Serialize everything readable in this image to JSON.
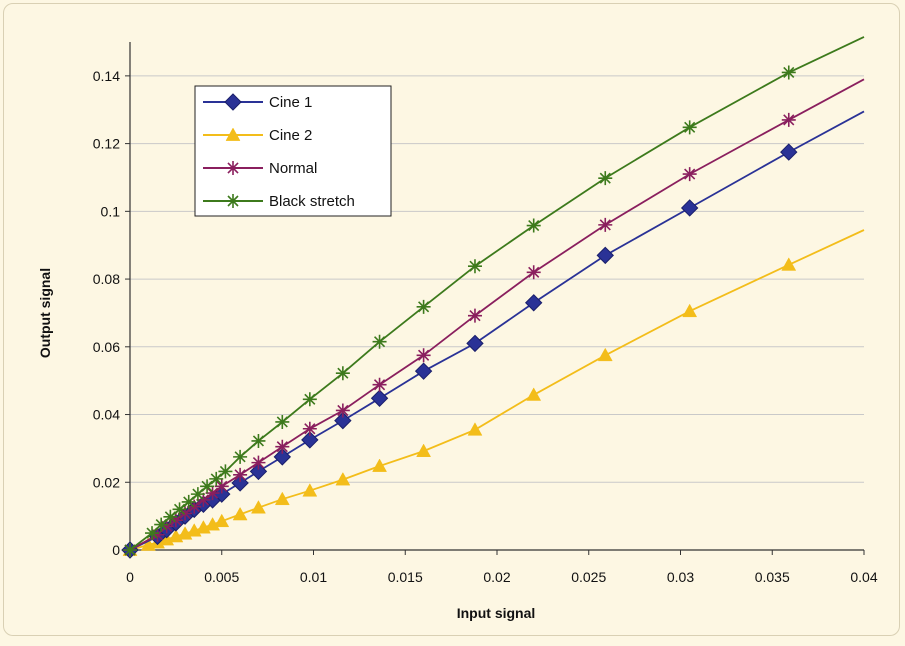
{
  "chart_data": {
    "type": "line",
    "title": "",
    "xlabel": "Input signal",
    "ylabel": "Output signal",
    "xlim": [
      0,
      0.04
    ],
    "ylim": [
      0,
      0.15
    ],
    "x_ticks": [
      0,
      0.005,
      0.01,
      0.015,
      0.02,
      0.025,
      0.03,
      0.035,
      0.04
    ],
    "x_tick_labels": [
      "0",
      "0.005",
      "0.01",
      "0.015",
      "0.02",
      "0.025",
      "0.03",
      "0.035",
      "0.04"
    ],
    "y_ticks": [
      0,
      0.02,
      0.04,
      0.06,
      0.08,
      0.1,
      0.12,
      0.14
    ],
    "y_tick_labels": [
      "0",
      "0.02",
      "0.04",
      "0.06",
      "0.08",
      "0.1",
      "0.12",
      "0.14"
    ],
    "grid": "horizontal",
    "legend_position": "top-left",
    "series": [
      {
        "name": "Cine 1",
        "color": "#2a3296",
        "marker": "diamond",
        "x": [
          0,
          0.0015,
          0.002,
          0.0025,
          0.003,
          0.0035,
          0.004,
          0.0045,
          0.005,
          0.006,
          0.007,
          0.0083,
          0.0098,
          0.0116,
          0.0136,
          0.016,
          0.0188,
          0.022,
          0.0259,
          0.0305,
          0.0359,
          0.04
        ],
        "y": [
          0,
          0.004,
          0.006,
          0.008,
          0.01,
          0.012,
          0.0135,
          0.0148,
          0.0165,
          0.0198,
          0.0232,
          0.0275,
          0.0325,
          0.0382,
          0.0448,
          0.0528,
          0.061,
          0.073,
          0.087,
          0.101,
          0.1175,
          0.1295
        ]
      },
      {
        "name": "Cine 2",
        "color": "#f3bd1a",
        "marker": "triangle",
        "x": [
          0,
          0.001,
          0.0015,
          0.002,
          0.0025,
          0.003,
          0.0035,
          0.004,
          0.0045,
          0.005,
          0.006,
          0.007,
          0.0083,
          0.0098,
          0.0116,
          0.0136,
          0.016,
          0.0188,
          0.022,
          0.0259,
          0.0305,
          0.0359,
          0.04
        ],
        "y": [
          0,
          0.0015,
          0.0022,
          0.0031,
          0.004,
          0.0048,
          0.0057,
          0.0066,
          0.0075,
          0.0085,
          0.0105,
          0.0125,
          0.015,
          0.0175,
          0.0208,
          0.0248,
          0.0292,
          0.0355,
          0.0458,
          0.0575,
          0.0705,
          0.0842,
          0.0945
        ]
      },
      {
        "name": "Normal",
        "color": "#8a1f5e",
        "marker": "asterisk",
        "x": [
          0,
          0.0015,
          0.002,
          0.0025,
          0.003,
          0.0035,
          0.004,
          0.0045,
          0.005,
          0.006,
          0.007,
          0.0083,
          0.0098,
          0.0116,
          0.0136,
          0.016,
          0.0188,
          0.022,
          0.0259,
          0.0305,
          0.0359,
          0.04
        ],
        "y": [
          0,
          0.0045,
          0.007,
          0.0088,
          0.0108,
          0.0128,
          0.0148,
          0.0168,
          0.0188,
          0.0222,
          0.0258,
          0.0305,
          0.0358,
          0.0412,
          0.0488,
          0.0575,
          0.0692,
          0.082,
          0.096,
          0.111,
          0.127,
          0.139
        ]
      },
      {
        "name": "Black stretch",
        "color": "#3d7a1c",
        "marker": "cross-plus",
        "x": [
          0,
          0.0012,
          0.0017,
          0.0022,
          0.0027,
          0.0032,
          0.0037,
          0.0042,
          0.0047,
          0.0052,
          0.006,
          0.007,
          0.0083,
          0.0098,
          0.0116,
          0.0136,
          0.016,
          0.0188,
          0.022,
          0.0259,
          0.0305,
          0.0359,
          0.04
        ],
        "y": [
          0,
          0.005,
          0.0075,
          0.0098,
          0.012,
          0.0142,
          0.0165,
          0.0188,
          0.021,
          0.0232,
          0.0275,
          0.0322,
          0.0378,
          0.0445,
          0.0522,
          0.0615,
          0.0718,
          0.0838,
          0.0958,
          0.1098,
          0.1248,
          0.141,
          0.1515
        ]
      }
    ]
  }
}
